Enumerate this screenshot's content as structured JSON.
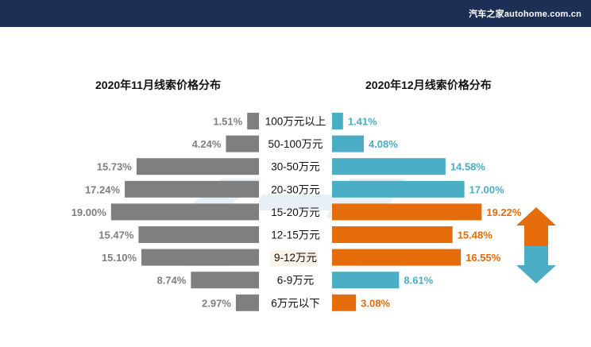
{
  "header": {
    "brand": "汽车之家autohome.com.cn"
  },
  "colors": {
    "header_bg": "#1e2f55",
    "left_bar": "#7f7f7f",
    "right_blue": "#4bacc6",
    "right_orange": "#e46c0a",
    "arrow_up": "#e46c0a",
    "arrow_down": "#4bacc6"
  },
  "chart_data": {
    "type": "bar",
    "layout": "butterfly",
    "categories": [
      "100万元以上",
      "50-100万元",
      "30-50万元",
      "20-30万元",
      "15-20万元",
      "12-15万元",
      "9-12万元",
      "6-9万元",
      "6万元以下"
    ],
    "series": [
      {
        "name": "2020年11月线索价格分布",
        "side": "left",
        "values": [
          1.51,
          4.24,
          15.73,
          17.24,
          19.0,
          15.47,
          15.1,
          8.74,
          2.97
        ],
        "labels": [
          "1.51%",
          "4.24%",
          "15.73%",
          "17.24%",
          "19.00%",
          "15.47%",
          "15.10%",
          "8.74%",
          "2.97%"
        ]
      },
      {
        "name": "2020年12月线索价格分布",
        "side": "right",
        "values": [
          1.41,
          4.08,
          14.58,
          17.0,
          19.22,
          15.48,
          16.55,
          8.61,
          3.08
        ],
        "labels": [
          "1.41%",
          "4.08%",
          "14.58%",
          "17.00%",
          "19.22%",
          "15.48%",
          "16.55%",
          "8.61%",
          "3.08%"
        ],
        "highlight": [
          false,
          false,
          false,
          false,
          true,
          true,
          true,
          false,
          true
        ]
      }
    ],
    "legend": "none",
    "grid": false
  }
}
